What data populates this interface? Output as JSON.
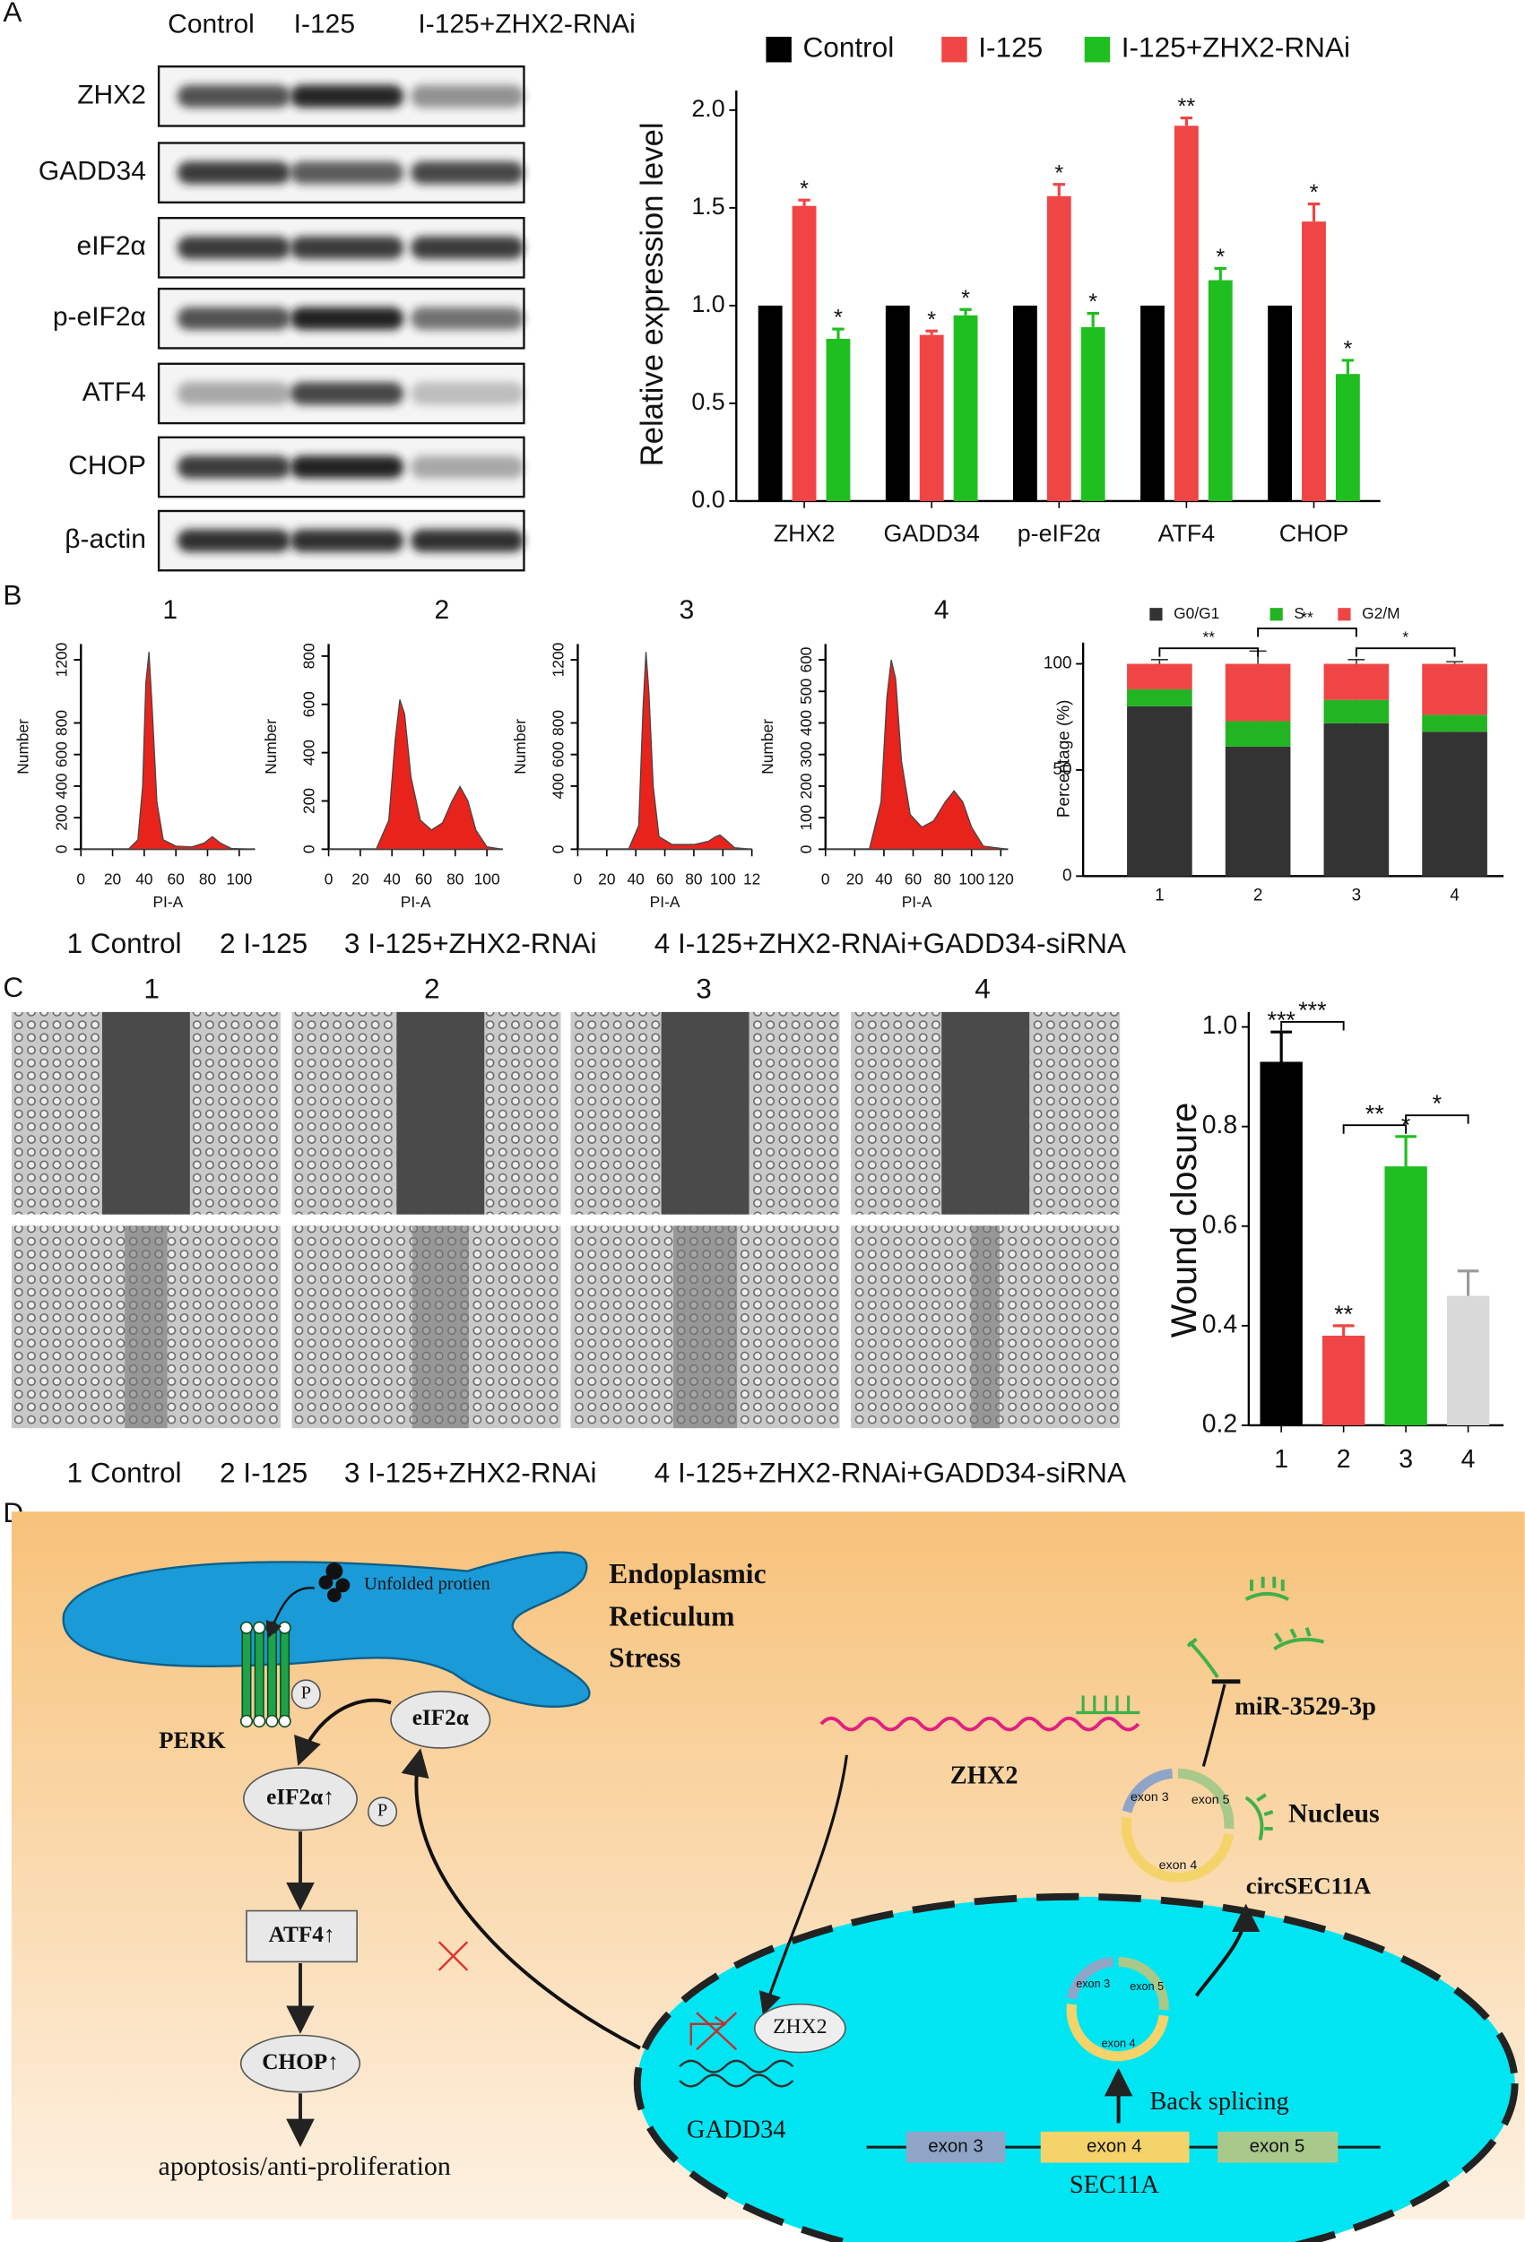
{
  "panel_labels": [
    "A",
    "B",
    "C",
    "D"
  ],
  "blot": {
    "columns": [
      "Control",
      "I-125",
      "I-125+ZHX2-RNAi"
    ],
    "rows": [
      "ZHX2",
      "GADD34",
      "eIF2α",
      "p-eIF2α",
      "ATF4",
      "CHOP",
      "β-actin"
    ]
  },
  "chart_data": [
    {
      "type": "bar",
      "ylabel": "Relative expression level",
      "categories": [
        "ZHX2",
        "GADD34",
        "p-eIF2α",
        "ATF4",
        "CHOP"
      ],
      "series": [
        {
          "name": "Control",
          "color": "#000000",
          "values": [
            1.0,
            1.0,
            1.0,
            1.0,
            1.0
          ]
        },
        {
          "name": "I-125",
          "color": "#f04545",
          "values": [
            1.51,
            0.85,
            1.56,
            1.92,
            1.43
          ],
          "errors": [
            0.03,
            0.02,
            0.06,
            0.04,
            0.09
          ],
          "significance": [
            "*",
            "*",
            "*",
            "**",
            "*"
          ]
        },
        {
          "name": "I-125+ZHX2-RNAi",
          "color": "#1fbf1f",
          "values": [
            0.83,
            0.95,
            0.89,
            1.13,
            0.65
          ],
          "errors": [
            0.05,
            0.03,
            0.07,
            0.06,
            0.07
          ],
          "significance": [
            "*",
            "*",
            "*",
            "*",
            "*"
          ]
        }
      ],
      "ylim": [
        0,
        2.1
      ],
      "yticks": [
        {
          "value": 0,
          "label": "0.0"
        },
        0.5,
        {
          "value": 1,
          "label": "1.0"
        },
        1.5,
        {
          "value": 2,
          "label": "2.0"
        }
      ],
      "legend": "top"
    },
    {
      "type": "stacked_bar",
      "ylabel": "Percentage (%)",
      "categories": [
        "1",
        "2",
        "3",
        "4"
      ],
      "series": [
        {
          "name": "G0/G1",
          "color": "#333333",
          "values": [
            80,
            61,
            72,
            68
          ],
          "errors": [
            1,
            1,
            4,
            2
          ]
        },
        {
          "name": "S",
          "color": "#22b422",
          "values": [
            8,
            12,
            11,
            8
          ],
          "errors": [
            1,
            2,
            6,
            7
          ]
        },
        {
          "name": "G2/M",
          "color": "#f04545",
          "values": [
            12,
            27,
            17,
            24
          ],
          "errors": [
            2,
            6,
            2,
            1
          ]
        }
      ],
      "significance": [
        "**",
        "**",
        "*"
      ],
      "ylim": [
        0,
        110
      ],
      "yticks": [
        0,
        50,
        100
      ],
      "legend": "top"
    },
    {
      "type": "area",
      "title": "1",
      "xlabel": "PI-A",
      "ylabel": "Number",
      "color": "#e8231c",
      "x": [
        0,
        30,
        36,
        39,
        41,
        43,
        45,
        48,
        52,
        60,
        70,
        78,
        83,
        88,
        95,
        110
      ],
      "values": [
        0,
        0,
        60,
        400,
        1050,
        1250,
        900,
        300,
        60,
        20,
        15,
        40,
        80,
        40,
        5,
        0
      ],
      "xlim": [
        0,
        110
      ],
      "xticks": [
        0,
        20,
        40,
        60,
        80,
        100
      ],
      "ylim": [
        0,
        1300
      ],
      "yticks": [
        0,
        200,
        400,
        600,
        800,
        1200
      ]
    },
    {
      "type": "area",
      "title": "2",
      "xlabel": "PI-A",
      "ylabel": "Number",
      "color": "#e8231c",
      "x": [
        0,
        30,
        38,
        42,
        45,
        48,
        52,
        58,
        65,
        72,
        78,
        83,
        88,
        93,
        100,
        110
      ],
      "values": [
        0,
        0,
        120,
        450,
        620,
        560,
        300,
        120,
        80,
        110,
        200,
        260,
        200,
        80,
        10,
        0
      ],
      "xlim": [
        0,
        110
      ],
      "xticks": [
        0,
        20,
        40,
        60,
        80,
        100
      ],
      "ylim": [
        0,
        850
      ],
      "yticks": [
        0,
        200,
        400,
        600,
        800
      ]
    },
    {
      "type": "area",
      "title": "3",
      "xlabel": "PI-A",
      "ylabel": "Number",
      "color": "#e8231c",
      "x": [
        0,
        35,
        42,
        45,
        47,
        49,
        52,
        56,
        65,
        80,
        90,
        95,
        98,
        102,
        108,
        120
      ],
      "values": [
        0,
        0,
        150,
        900,
        1250,
        1000,
        400,
        80,
        30,
        30,
        50,
        80,
        90,
        60,
        10,
        0
      ],
      "xlim": [
        0,
        120
      ],
      "xticks": [
        0,
        20,
        40,
        60,
        80,
        100,
        {
          "value": 120,
          "label": "12"
        }
      ],
      "ylim": [
        0,
        1300
      ],
      "yticks": [
        0,
        400,
        600,
        800,
        1200
      ]
    },
    {
      "type": "area",
      "title": "4",
      "xlabel": "PI-A",
      "ylabel": "Number",
      "color": "#e8231c",
      "x": [
        0,
        30,
        38,
        42,
        45,
        48,
        52,
        58,
        66,
        74,
        82,
        88,
        94,
        100,
        108,
        125
      ],
      "values": [
        0,
        0,
        150,
        480,
        600,
        540,
        280,
        110,
        70,
        90,
        150,
        185,
        150,
        70,
        10,
        0
      ],
      "xlim": [
        0,
        125
      ],
      "xticks": [
        0,
        20,
        40,
        60,
        80,
        100,
        120
      ],
      "ylim": [
        0,
        650
      ],
      "yticks": [
        0,
        100,
        200,
        300,
        400,
        500,
        600
      ]
    },
    {
      "type": "bar",
      "ylabel": "Wound closure",
      "categories": [
        "1",
        "2",
        "3",
        "4"
      ],
      "values": [
        0.93,
        0.38,
        0.72,
        0.46
      ],
      "errors": [
        0.06,
        0.02,
        0.06,
        0.05
      ],
      "colors": [
        "#000000",
        "#f04545",
        "#1fbf1f",
        "#d9d9d9"
      ],
      "significance": [
        "***",
        "**",
        "*"
      ],
      "ylim": [
        0.2,
        1.03
      ],
      "yticks": [
        0.2,
        0.4,
        0.6,
        0.8,
        {
          "value": 1,
          "label": "1.0"
        }
      ]
    }
  ],
  "group_legend_b": [
    "1 Control",
    "2 I-125",
    "3 I-125+ZHX2-RNAi",
    "4 I-125+ZHX2-RNAi+GADD34-siRNA"
  ],
  "wound_images": {
    "titles": [
      "1",
      "2",
      "3",
      "4"
    ]
  },
  "group_legend_c": [
    "1 Control",
    "2 I-125",
    "3 I-125+ZHX2-RNAi",
    "4 I-125+ZHX2-RNAi+GADD34-siRNA"
  ],
  "diagram": {
    "unfolded": "Unfolded protien",
    "er_title": [
      "Endoplasmic",
      "Reticulum",
      "Stress"
    ],
    "perk": "PERK",
    "p1": "P",
    "eif2a": "eIF2α",
    "eif2a_up": "eIF2α↑",
    "p2": "P",
    "atf4": "ATF4↑",
    "chop": "CHOP↑",
    "outcome": "apoptosis/anti-proliferation",
    "zhx2_mrna": "ZHX2",
    "mirna": "miR-3529-3p",
    "nucleus": "Nucleus",
    "circ": "circSEC11A",
    "circ_exons": [
      "exon 3",
      "exon 5",
      "exon 4"
    ],
    "zhx2_protein": "ZHX2",
    "gadd34": "GADD34",
    "nuc_circ_exons": [
      "exon 3",
      "exon 5",
      "exon 4"
    ],
    "back_splicing": "Back splicing",
    "gene_exons": [
      "exon 3",
      "exon 4",
      "exon 5"
    ],
    "gene": "SEC11A"
  }
}
